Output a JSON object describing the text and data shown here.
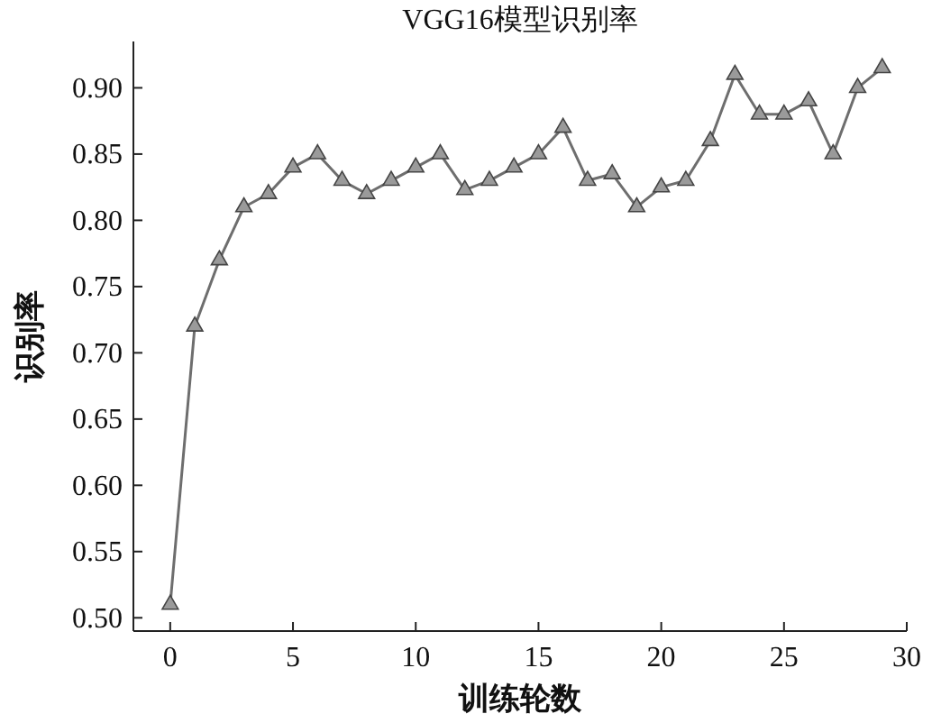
{
  "chart_data": {
    "type": "line",
    "title": "VGG16模型识别率",
    "xlabel": "训练轮数",
    "ylabel": "识别率",
    "x": [
      0,
      1,
      2,
      3,
      4,
      5,
      6,
      7,
      8,
      9,
      10,
      11,
      12,
      13,
      14,
      15,
      16,
      17,
      18,
      19,
      20,
      21,
      22,
      23,
      24,
      25,
      26,
      27,
      28,
      29
    ],
    "series": [
      {
        "color": "#6e6e6e",
        "values": [
          0.51,
          0.72,
          0.77,
          0.81,
          0.82,
          0.84,
          0.85,
          0.83,
          0.82,
          0.83,
          0.84,
          0.85,
          0.823,
          0.83,
          0.84,
          0.85,
          0.87,
          0.83,
          0.835,
          0.81,
          0.825,
          0.83,
          0.86,
          0.91,
          0.88,
          0.88,
          0.89,
          0.85,
          0.9,
          0.915
        ]
      }
    ],
    "xlim": [
      -1.5,
      30
    ],
    "xticks": [
      0,
      5,
      10,
      15,
      20,
      25,
      30
    ],
    "ylim": [
      0.49,
      0.935
    ],
    "yticks": [
      {
        "value": 0.5,
        "label": "0.50"
      },
      {
        "value": 0.55,
        "label": "0.55"
      },
      {
        "value": 0.6,
        "label": "0.60"
      },
      {
        "value": 0.65,
        "label": "0.65"
      },
      {
        "value": 0.7,
        "label": "0.70"
      },
      {
        "value": 0.75,
        "label": "0.75"
      },
      {
        "value": 0.8,
        "label": "0.80"
      },
      {
        "value": 0.85,
        "label": "0.85"
      },
      {
        "value": 0.9,
        "label": "0.90"
      }
    ],
    "grid": false,
    "marker": "triangle",
    "line_style": "solid"
  }
}
